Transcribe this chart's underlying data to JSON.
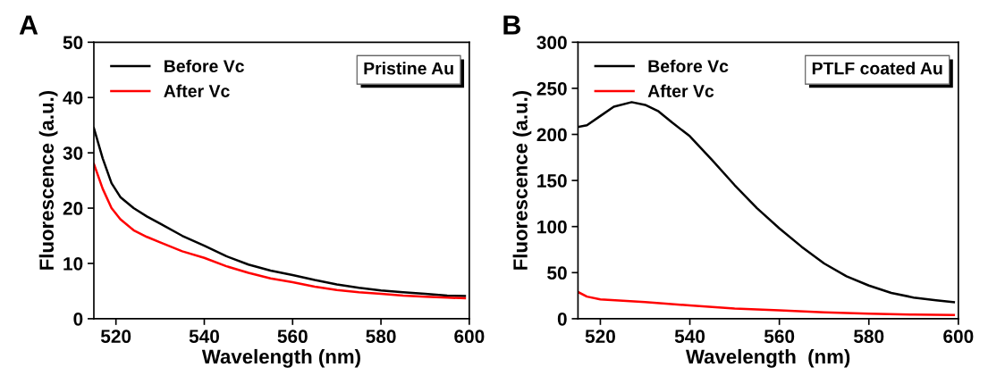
{
  "chart_data": [
    {
      "type": "line",
      "title": "A",
      "xlabel": "Wavelength (nm)",
      "ylabel": "Fluorescence (a.u.)",
      "annotations": [
        "Pristine Au"
      ],
      "xlim": [
        515,
        600
      ],
      "xticks": [
        520,
        540,
        560,
        580,
        600
      ],
      "ylim": [
        0,
        50
      ],
      "yticks": [
        0,
        10,
        20,
        30,
        40,
        50
      ],
      "legend": "top left",
      "grid": false,
      "x": [
        515,
        517,
        519,
        521,
        524,
        527,
        530,
        535,
        540,
        545,
        550,
        555,
        560,
        565,
        570,
        575,
        580,
        585,
        590,
        595,
        599
      ],
      "series": [
        {
          "name": "Before Vc",
          "color": "#000000",
          "values": [
            34.5,
            29,
            24.5,
            22,
            20,
            18.5,
            17.2,
            15,
            13.2,
            11.3,
            9.8,
            8.7,
            7.9,
            7,
            6.2,
            5.6,
            5.1,
            4.8,
            4.5,
            4.2,
            4.1
          ]
        },
        {
          "name": "After Vc",
          "color": "#ff0000",
          "values": [
            28,
            23.5,
            20,
            18,
            16,
            14.8,
            13.8,
            12.2,
            11,
            9.5,
            8.3,
            7.3,
            6.6,
            5.8,
            5.2,
            4.8,
            4.5,
            4.2,
            4,
            3.8,
            3.7
          ]
        }
      ]
    },
    {
      "type": "line",
      "title": "B",
      "xlabel": "Wavelength  (nm)",
      "ylabel": "Fluorescence (a.u.)",
      "annotations": [
        "PTLF coated Au"
      ],
      "xlim": [
        515,
        600
      ],
      "xticks": [
        520,
        540,
        560,
        580,
        600
      ],
      "ylim": [
        0,
        300
      ],
      "yticks": [
        0,
        50,
        100,
        150,
        200,
        250,
        300
      ],
      "legend": "top left",
      "grid": false,
      "series": [
        {
          "name": "Before Vc",
          "color": "#000000",
          "x": [
            515,
            517,
            520,
            523,
            527,
            530,
            533,
            536,
            540,
            545,
            550,
            555,
            560,
            565,
            570,
            575,
            580,
            585,
            590,
            595,
            599
          ],
          "values": [
            208,
            210,
            220,
            230,
            235,
            232,
            225,
            213,
            198,
            172,
            145,
            120,
            98,
            78,
            60,
            46,
            36,
            28,
            23,
            20,
            18
          ]
        },
        {
          "name": "After Vc",
          "color": "#ff0000",
          "x": [
            515,
            517,
            520,
            530,
            540,
            550,
            560,
            570,
            580,
            590,
            599
          ],
          "values": [
            29,
            24,
            21,
            18,
            14.5,
            11,
            9,
            7,
            5.5,
            4.5,
            4
          ]
        }
      ]
    }
  ]
}
